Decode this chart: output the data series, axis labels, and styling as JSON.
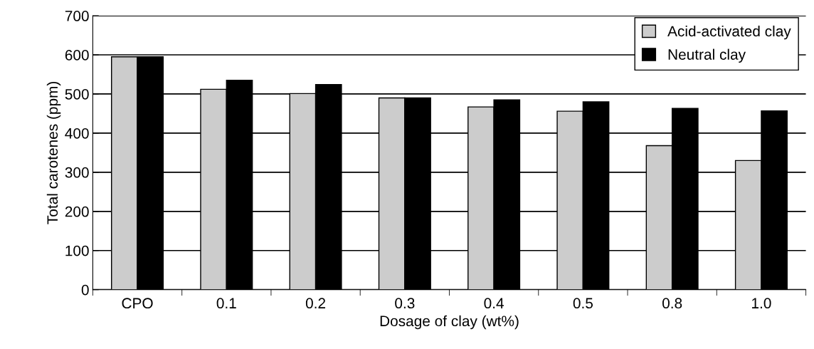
{
  "chart_data": {
    "type": "bar",
    "xlabel": "Dosage of clay (wt%)",
    "ylabel": "Total carotenes (ppm)",
    "categories": [
      "CPO",
      "0.1",
      "0.2",
      "0.3",
      "0.4",
      "0.5",
      "0.8",
      "1.0"
    ],
    "series": [
      {
        "name": "Acid-activated clay",
        "color": "#cccccc",
        "values": [
          595,
          512,
          501,
          490,
          467,
          456,
          368,
          330
        ]
      },
      {
        "name": "Neutral clay",
        "color": "#000000",
        "values": [
          595,
          535,
          524,
          490,
          485,
          480,
          463,
          457
        ]
      }
    ],
    "ylim": [
      0,
      700
    ],
    "yticks": [
      0,
      100,
      200,
      300,
      400,
      500,
      600,
      700
    ],
    "grid": "y",
    "legend": "top right"
  }
}
